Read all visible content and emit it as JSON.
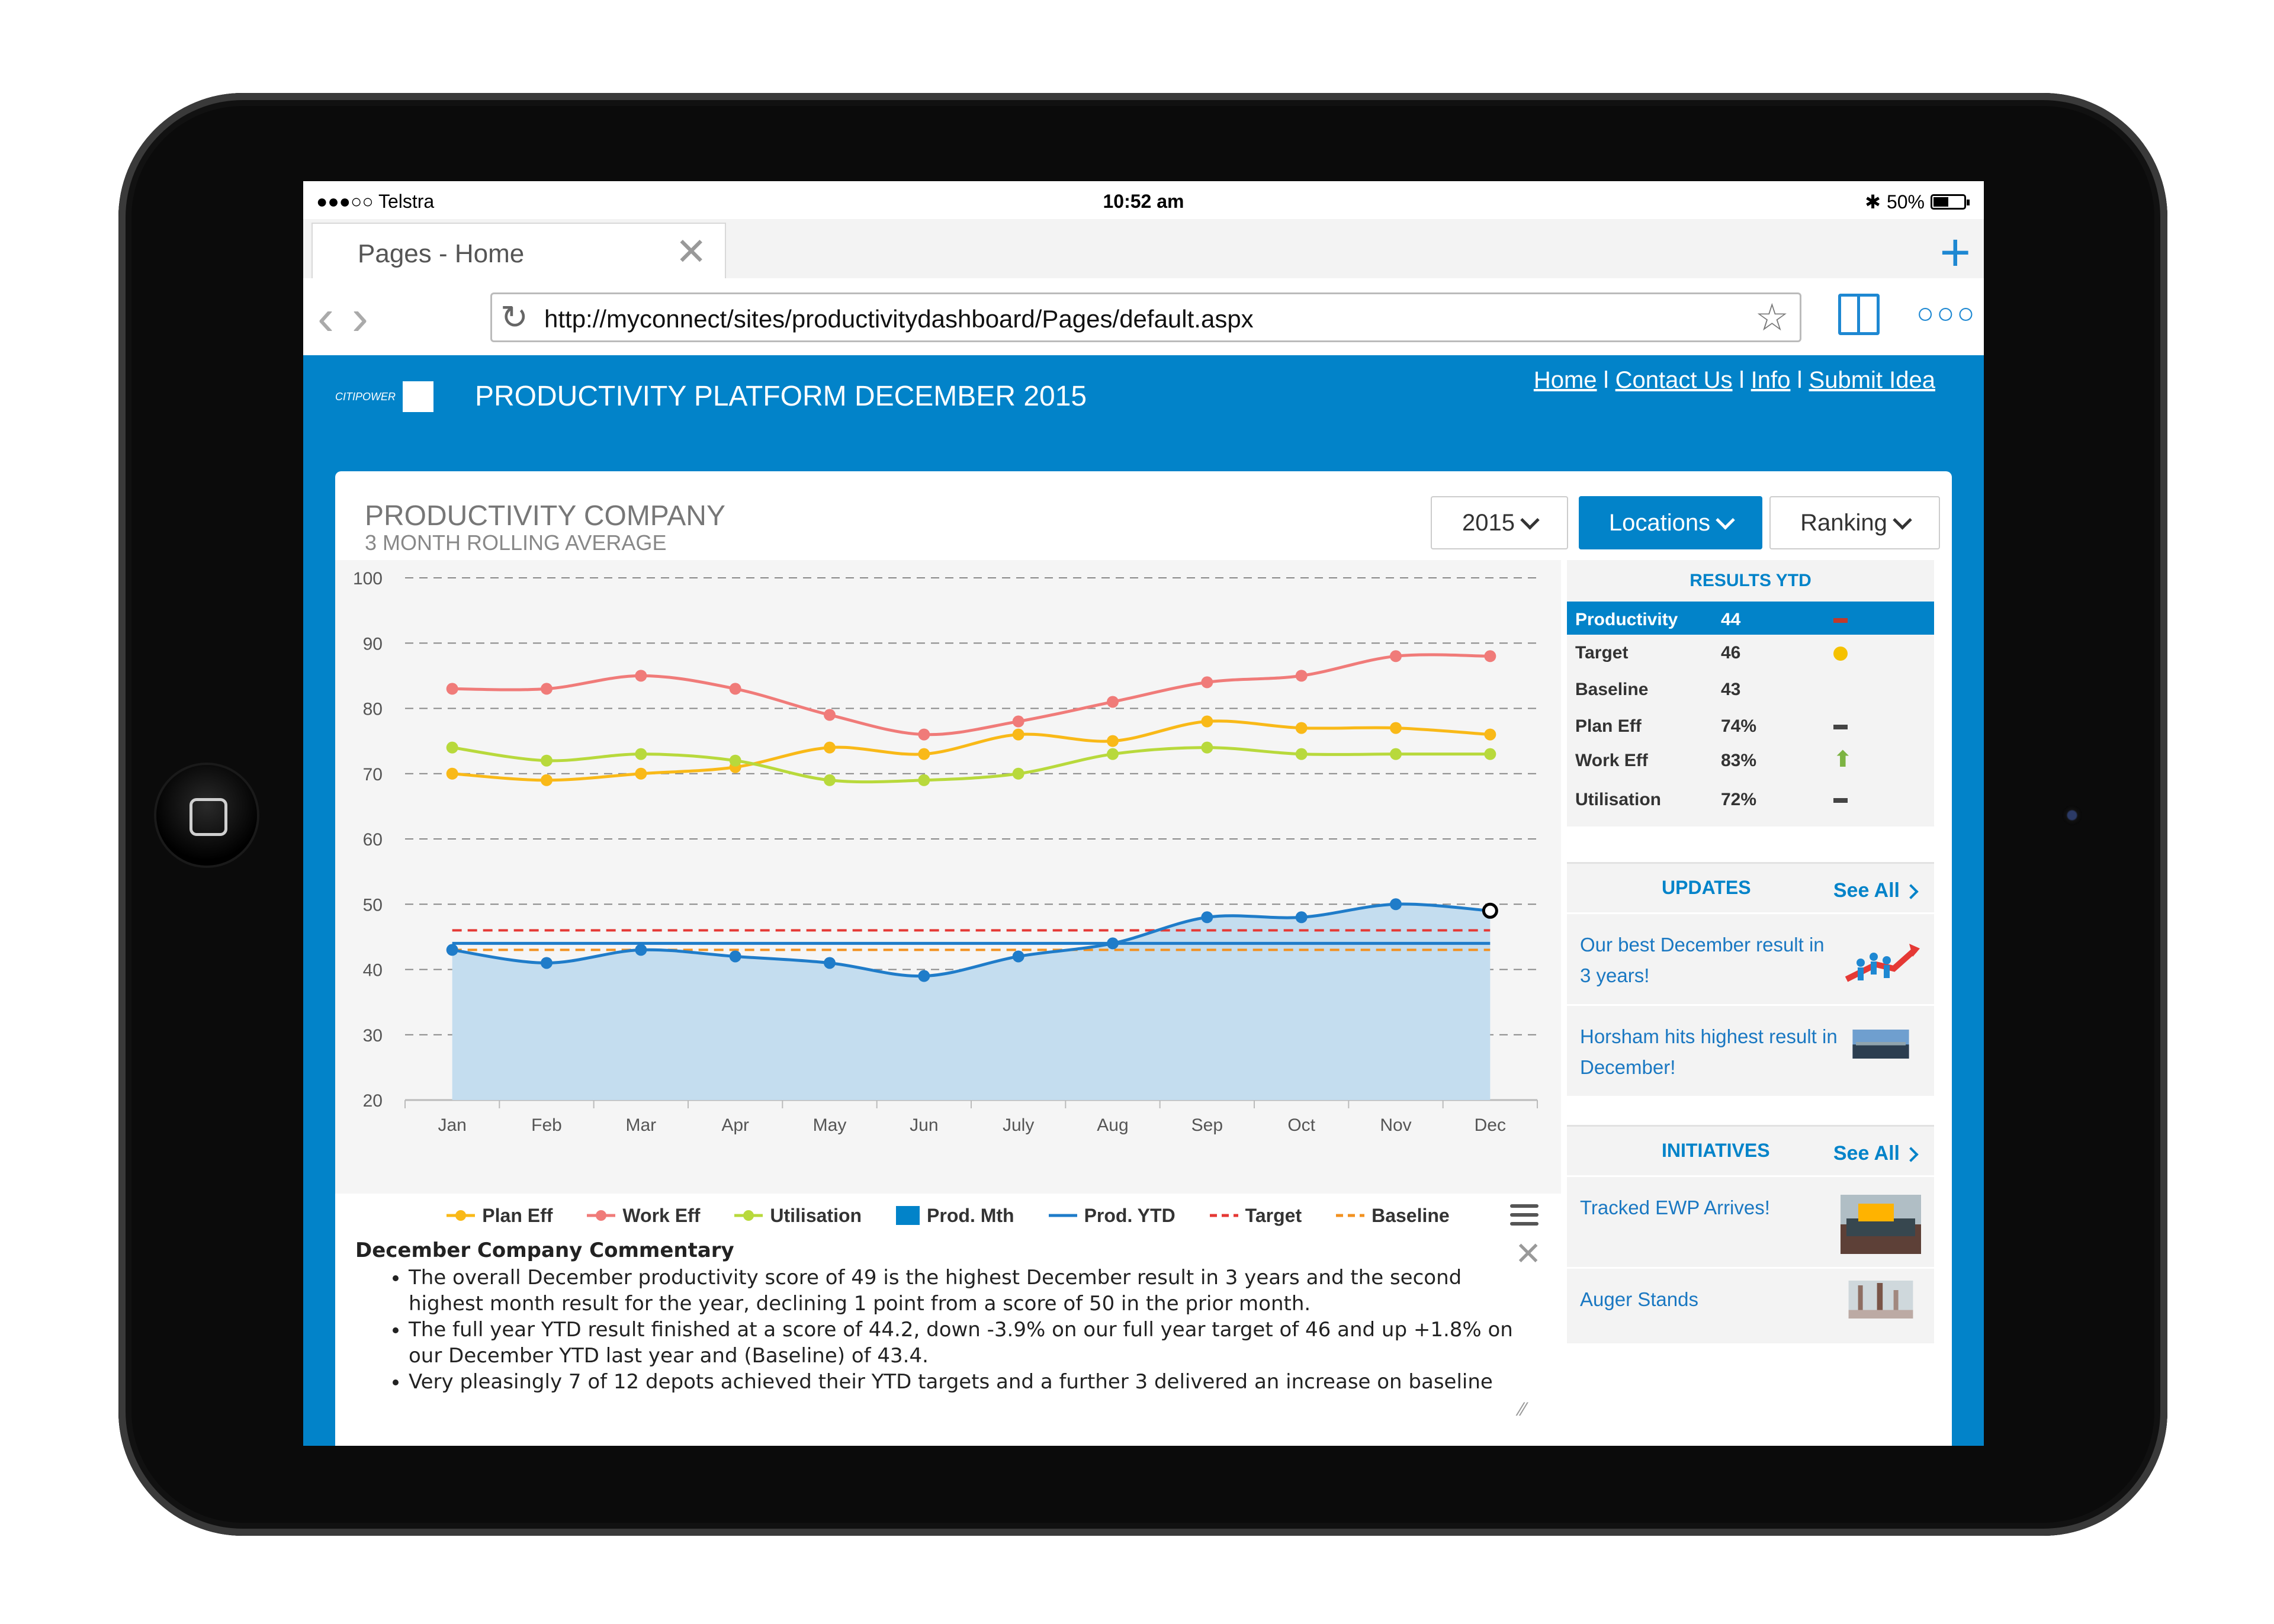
{
  "status_bar": {
    "carrier": "●●●○○ Telstra",
    "time": "10:52 am",
    "battery": "50%",
    "battery_level": 0.5
  },
  "browser": {
    "tab_title": "Pages - Home",
    "url": "http://myconnect/sites/productivitydashboard/Pages/default.aspx"
  },
  "header": {
    "logo_text": "CITIPOWER",
    "title": "PRODUCTIVITY PLATFORM DECEMBER 2015",
    "links": [
      "Home",
      "Contact Us",
      "Info",
      "Submit Idea"
    ],
    "separator": "l"
  },
  "card": {
    "title": "PRODUCTIVITY COMPANY",
    "subtitle": "3 MONTH ROLLING AVERAGE",
    "buttons": {
      "year": "2015",
      "locations": "Locations",
      "ranking": "Ranking"
    }
  },
  "colors": {
    "brand_blue": "#0283c9",
    "plan_eff": "#f9b918",
    "work_eff": "#f07b79",
    "utilisation": "#b8d93c",
    "prod_mth_fill": "#c4ddef",
    "prod_ytd": "#1f7cc9",
    "target": "#e53935",
    "baseline": "#f29120"
  },
  "chart_data": {
    "type": "line",
    "categories": [
      "Jan",
      "Feb",
      "Mar",
      "Apr",
      "May",
      "Jun",
      "July",
      "Aug",
      "Sep",
      "Oct",
      "Nov",
      "Dec"
    ],
    "ylim": [
      20,
      100
    ],
    "yticks": [
      100,
      90,
      80,
      70,
      60,
      50,
      40,
      30,
      20
    ],
    "grid": true,
    "legend_position": "bottom",
    "series": [
      {
        "name": "Plan Eff",
        "kind": "line",
        "values": [
          70,
          69,
          70,
          71,
          74,
          73,
          76,
          75,
          78,
          77,
          77,
          76
        ]
      },
      {
        "name": "Work Eff",
        "kind": "line",
        "values": [
          83,
          83,
          85,
          83,
          79,
          76,
          78,
          81,
          84,
          85,
          88,
          88
        ]
      },
      {
        "name": "Utilisation",
        "kind": "line",
        "values": [
          74,
          72,
          73,
          72,
          69,
          69,
          70,
          73,
          74,
          73,
          73,
          73
        ]
      },
      {
        "name": "Prod. Mth",
        "kind": "area",
        "values": [
          43,
          41,
          43,
          42,
          41,
          39,
          42,
          44,
          48,
          48,
          50,
          49
        ]
      },
      {
        "name": "Prod. YTD",
        "kind": "flat",
        "values": [
          44,
          44,
          44,
          44,
          44,
          44,
          44,
          44,
          44,
          44,
          44,
          44
        ]
      },
      {
        "name": "Target",
        "kind": "dashed",
        "values": [
          46,
          46,
          46,
          46,
          46,
          46,
          46,
          46,
          46,
          46,
          46,
          46
        ]
      },
      {
        "name": "Baseline",
        "kind": "dashed",
        "values": [
          43,
          43,
          43,
          43,
          43,
          43,
          43,
          43,
          43,
          43,
          43,
          43
        ]
      }
    ]
  },
  "legend": [
    "Plan Eff",
    "Work Eff",
    "Utilisation",
    "Prod. Mth",
    "Prod. YTD",
    "Target",
    "Baseline"
  ],
  "commentary": {
    "heading": "December Company Commentary",
    "bullets": [
      "The overall December productivity score of 49 is the highest December result in 3 years and the second highest month result for the year, declining 1 point from a score of 50 in the prior month.",
      "The full year YTD result finished at a score of 44.2, down -3.9% on our full year target of 46 and up +1.8% on our December YTD last year and (Baseline) of 43.4.",
      "Very pleasingly 7 of 12 depots achieved their YTD targets and a further 3 delivered an increase on baseline"
    ]
  },
  "results": {
    "heading": "RESULTS YTD",
    "rows": [
      {
        "label": "Productivity",
        "value": "44",
        "status": "dash-red"
      },
      {
        "label": "Target",
        "value": "46",
        "status": "dot-yellow"
      },
      {
        "label": "Baseline",
        "value": "43",
        "status": "none"
      },
      {
        "label": "Plan Eff",
        "value": "74%",
        "status": "dash"
      },
      {
        "label": "Work Eff",
        "value": "83%",
        "status": "arrow-up"
      },
      {
        "label": "Utilisation",
        "value": "72%",
        "status": "dash"
      }
    ]
  },
  "updates": {
    "heading": "UPDATES",
    "see_all": "See All",
    "items": [
      {
        "text": "Our best December result in 3 years!",
        "icon": "chart-people-icon"
      },
      {
        "text": "Horsham hits highest result in December!",
        "icon": "landscape-photo-icon"
      }
    ]
  },
  "initiatives": {
    "heading": "INITIATIVES",
    "see_all": "See All",
    "items": [
      {
        "text": "Tracked EWP Arrives!",
        "icon": "group-photo-icon"
      },
      {
        "text": "Auger Stands",
        "icon": "site-photo-icon"
      }
    ]
  }
}
